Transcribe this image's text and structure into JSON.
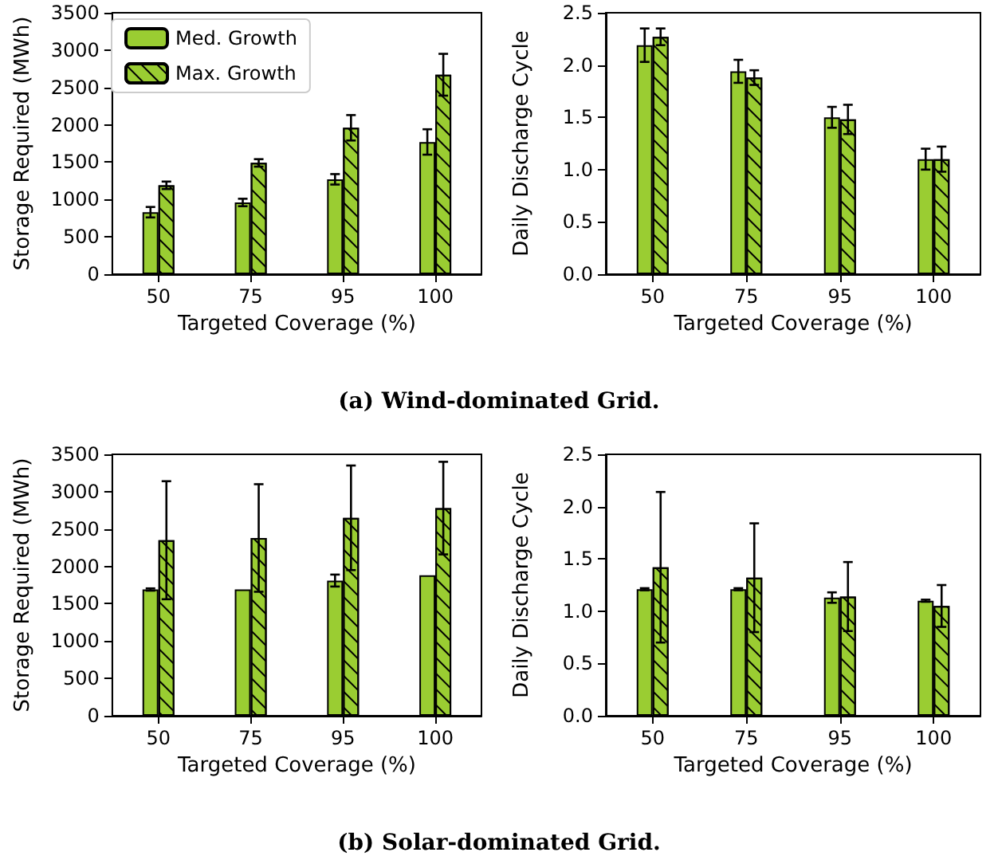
{
  "chart_data": [
    {
      "type": "bar",
      "xlabel": "Targeted Coverage (%)",
      "ylabel": "Storage Required (MWh)",
      "categories": [
        "50",
        "75",
        "95",
        "100"
      ],
      "ylim": [
        0,
        3500
      ],
      "yticks": [
        0,
        500,
        1000,
        1500,
        2000,
        2500,
        3000,
        3500
      ],
      "legend": "top left",
      "grid": false,
      "series": [
        {
          "name": "Med. Growth",
          "color": "#9acd32",
          "values": [
            830,
            960,
            1270,
            1770
          ],
          "errors": [
            70,
            50,
            70,
            170
          ]
        },
        {
          "name": "Max. Growth",
          "color": "#9acd32",
          "values": [
            1190,
            1490,
            1960,
            2670
          ],
          "errors": [
            50,
            50,
            170,
            280
          ]
        }
      ],
      "annotations": [
        "(a) Wind-dominated Grid."
      ]
    },
    {
      "type": "bar",
      "xlabel": "Targeted Coverage (%)",
      "ylabel": "Daily Discharge Cycle",
      "categories": [
        "50",
        "75",
        "95",
        "100"
      ],
      "ylim": [
        0,
        2.5
      ],
      "yticks": [
        {
          "value": 0,
          "label": "0.0"
        },
        0.5,
        {
          "value": 1,
          "label": "1.0"
        },
        1.5,
        {
          "value": 2,
          "label": "2.0"
        },
        2.5
      ],
      "grid": false,
      "series": [
        {
          "color": "#9acd32",
          "values": [
            2.19,
            1.94,
            1.5,
            1.1
          ],
          "errors": [
            0.16,
            0.11,
            0.1,
            0.1
          ]
        },
        {
          "color": "#9acd32",
          "values": [
            2.27,
            1.88,
            1.48,
            1.1
          ],
          "errors": [
            0.08,
            0.07,
            0.14,
            0.12
          ]
        }
      ]
    },
    {
      "type": "bar",
      "xlabel": "Targeted Coverage (%)",
      "ylabel": "Storage Required (MWh)",
      "categories": [
        "50",
        "75",
        "95",
        "100"
      ],
      "ylim": [
        0,
        3500
      ],
      "yticks": [
        0,
        500,
        1000,
        1500,
        2000,
        2500,
        3000,
        3500
      ],
      "grid": false,
      "series": [
        {
          "color": "#9acd32",
          "values": [
            1690,
            1690,
            1810,
            1880
          ],
          "errors": [
            15,
            null,
            80,
            null
          ]
        },
        {
          "color": "#9acd32",
          "values": [
            2350,
            2380,
            2650,
            2780
          ],
          "errors": [
            790,
            720,
            700,
            620
          ]
        }
      ],
      "annotations": [
        "(b) Solar-dominated Grid."
      ]
    },
    {
      "type": "bar",
      "xlabel": "Targeted Coverage (%)",
      "ylabel": "Daily Discharge Cycle",
      "categories": [
        "50",
        "75",
        "95",
        "100"
      ],
      "ylim": [
        0,
        2.5
      ],
      "yticks": [
        {
          "value": 0,
          "label": "0.0"
        },
        0.5,
        {
          "value": 1,
          "label": "1.0"
        },
        1.5,
        {
          "value": 2,
          "label": "2.0"
        },
        2.5
      ],
      "grid": false,
      "series": [
        {
          "color": "#9acd32",
          "values": [
            1.21,
            1.21,
            1.13,
            1.1
          ],
          "errors": [
            0.01,
            0.01,
            0.05,
            0.01
          ]
        },
        {
          "color": "#9acd32",
          "values": [
            1.42,
            1.32,
            1.14,
            1.05
          ],
          "errors": [
            0.72,
            0.52,
            0.33,
            0.2
          ]
        }
      ]
    }
  ]
}
